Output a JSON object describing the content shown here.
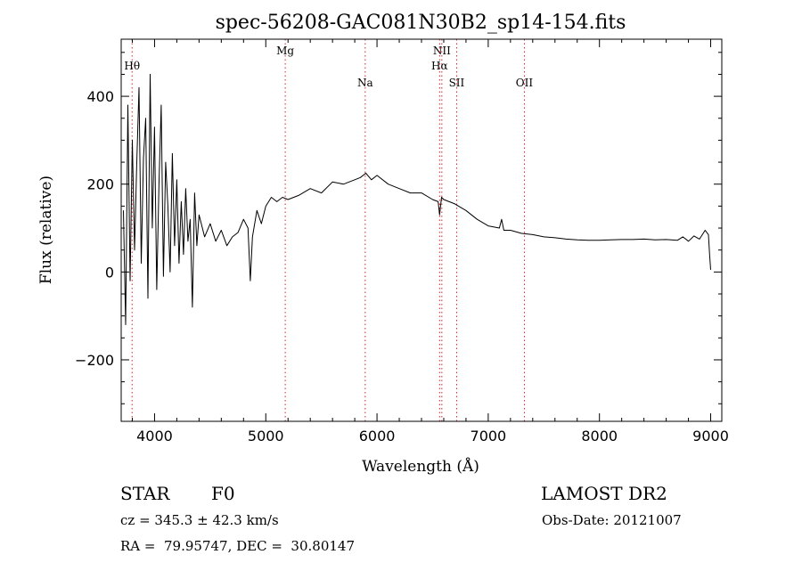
{
  "chart_data": {
    "type": "line",
    "title": "spec-56208-GAC081N30B2_sp14-154.fits",
    "xlabel": "Wavelength (Å)",
    "ylabel": "Flux (relative)",
    "xlim": [
      3700,
      9100
    ],
    "ylim": [
      -340,
      530
    ],
    "x_ticks": [
      4000,
      5000,
      6000,
      7000,
      8000,
      9000
    ],
    "x_tick_labels": [
      "4000",
      "5000",
      "6000",
      "7000",
      "8000",
      "9000"
    ],
    "y_ticks": [
      -200,
      0,
      200,
      400
    ],
    "y_tick_labels": [
      "−200",
      "0",
      "200",
      "400"
    ],
    "grid": false,
    "series": [
      {
        "color": "#000000",
        "x": [
          3720,
          3740,
          3760,
          3780,
          3800,
          3820,
          3840,
          3860,
          3880,
          3900,
          3920,
          3940,
          3960,
          3980,
          4000,
          4020,
          4040,
          4060,
          4080,
          4100,
          4120,
          4140,
          4160,
          4180,
          4200,
          4220,
          4240,
          4260,
          4280,
          4300,
          4320,
          4340,
          4360,
          4380,
          4400,
          4450,
          4500,
          4550,
          4600,
          4650,
          4700,
          4750,
          4800,
          4840,
          4861,
          4880,
          4920,
          4960,
          5000,
          5050,
          5100,
          5150,
          5200,
          5300,
          5400,
          5500,
          5600,
          5700,
          5800,
          5850,
          5900,
          5950,
          6000,
          6100,
          6200,
          6300,
          6400,
          6500,
          6550,
          6563,
          6580,
          6600,
          6700,
          6800,
          6900,
          7000,
          7100,
          7120,
          7140,
          7200,
          7300,
          7400,
          7500,
          7600,
          7700,
          7800,
          7900,
          8000,
          8100,
          8200,
          8300,
          8400,
          8500,
          8600,
          8700,
          8750,
          8800,
          8850,
          8900,
          8950,
          8980,
          8990,
          9000
        ],
        "y": [
          140,
          -120,
          380,
          -20,
          300,
          50,
          250,
          420,
          20,
          260,
          350,
          -60,
          450,
          100,
          330,
          -40,
          200,
          380,
          -10,
          250,
          150,
          0,
          270,
          60,
          210,
          20,
          160,
          40,
          190,
          70,
          120,
          -80,
          180,
          60,
          130,
          80,
          110,
          70,
          95,
          60,
          80,
          90,
          120,
          100,
          -20,
          80,
          140,
          110,
          150,
          170,
          160,
          170,
          165,
          175,
          190,
          180,
          205,
          200,
          210,
          215,
          225,
          210,
          220,
          200,
          190,
          180,
          180,
          165,
          160,
          130,
          170,
          165,
          155,
          140,
          120,
          105,
          100,
          120,
          95,
          95,
          88,
          85,
          80,
          78,
          75,
          73,
          72,
          72,
          73,
          74,
          74,
          75,
          73,
          74,
          72,
          80,
          70,
          82,
          75,
          95,
          85,
          40,
          5
        ]
      }
    ],
    "line_markers": [
      {
        "label": "Hθ",
        "x": 3798,
        "label_row": 1
      },
      {
        "label": "Mg",
        "x": 5175,
        "label_row": 0
      },
      {
        "label": "Na",
        "x": 5894,
        "label_row": 2
      },
      {
        "label": "NII",
        "x": 6583,
        "label_row": 0
      },
      {
        "label": "Hα",
        "x": 6563,
        "label_row": 1
      },
      {
        "label": "SII",
        "x": 6716,
        "label_row": 2
      },
      {
        "label": "OII",
        "x": 7325,
        "label_row": 2
      }
    ],
    "marker_color": "#e02020"
  },
  "footer": {
    "object_class": "STAR",
    "subclass": "F0",
    "survey": "LAMOST DR2",
    "redshift": "cz = 345.3 ± 42.3 km/s",
    "obs_date": "Obs-Date: 20121007",
    "coords": "RA =  79.95747, DEC =  30.80147"
  }
}
